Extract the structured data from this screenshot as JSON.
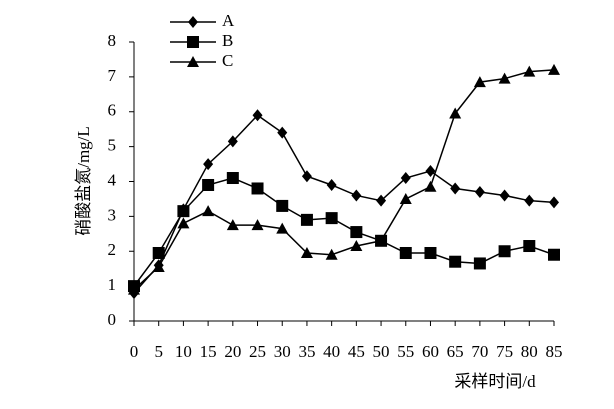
{
  "chart_data": {
    "type": "line",
    "xlabel": "采样时间/d",
    "ylabel": "硝酸盐氮/mg/L",
    "x": [
      0,
      5,
      10,
      15,
      20,
      25,
      30,
      35,
      40,
      45,
      50,
      55,
      60,
      65,
      70,
      75,
      80,
      85
    ],
    "xlim": [
      0,
      85
    ],
    "xticks": [
      0,
      5,
      10,
      15,
      20,
      25,
      30,
      35,
      40,
      45,
      50,
      55,
      60,
      65,
      70,
      75,
      80,
      85
    ],
    "ylim": [
      0,
      8
    ],
    "yticks": [
      0,
      1,
      2,
      3,
      4,
      5,
      6,
      7,
      8
    ],
    "grid": false,
    "legend": "upper-left",
    "series": [
      {
        "name": "A",
        "color": "#000000",
        "marker": "diamond",
        "values": [
          0.8,
          1.6,
          3.2,
          4.5,
          5.15,
          5.9,
          5.4,
          4.15,
          3.9,
          3.6,
          3.45,
          4.1,
          4.3,
          3.8,
          3.7,
          3.6,
          3.45,
          3.4
        ]
      },
      {
        "name": "B",
        "color": "#000000",
        "marker": "square",
        "values": [
          1.0,
          1.95,
          3.15,
          3.9,
          4.1,
          3.8,
          3.3,
          2.9,
          2.95,
          2.55,
          2.3,
          1.95,
          1.95,
          1.7,
          1.65,
          2.0,
          2.15,
          1.9
        ]
      },
      {
        "name": "C",
        "color": "#000000",
        "marker": "triangle",
        "values": [
          0.9,
          1.55,
          2.8,
          3.15,
          2.75,
          2.75,
          2.65,
          1.95,
          1.9,
          2.15,
          2.3,
          3.5,
          3.85,
          5.95,
          6.85,
          6.95,
          7.15,
          7.2
        ]
      }
    ]
  }
}
